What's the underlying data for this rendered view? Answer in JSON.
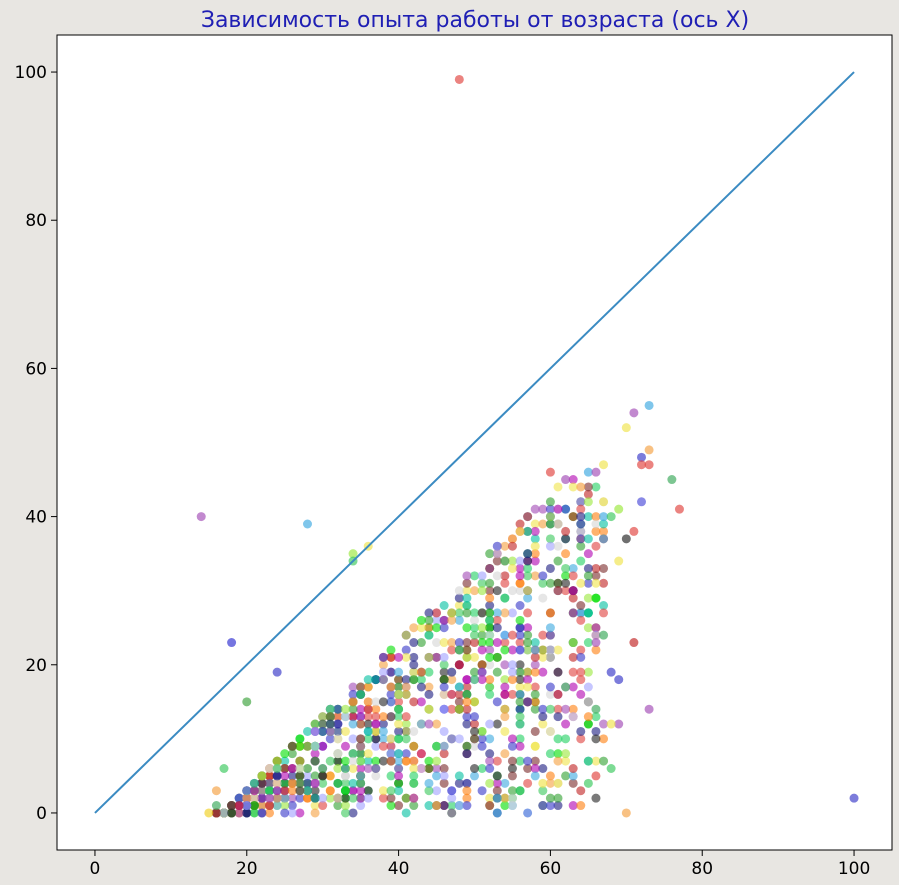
{
  "chart_data": {
    "type": "scatter",
    "title": "Зависимость опыта работы от возраста (ось X)",
    "xlabel": "",
    "ylabel": "",
    "xlim": [
      -5,
      105
    ],
    "ylim": [
      -5,
      105
    ],
    "x_ticks": [
      0,
      20,
      40,
      60,
      80,
      100
    ],
    "y_ticks": [
      0,
      20,
      40,
      60,
      80,
      100
    ],
    "grid": false,
    "reference_line": {
      "x": [
        0,
        100
      ],
      "y": [
        0,
        100
      ],
      "color": "#3b8bc2"
    },
    "outliers": [
      {
        "x": 48,
        "y": 99,
        "color": "#e0403c"
      },
      {
        "x": 14,
        "y": 40,
        "color": "#a24ab5"
      },
      {
        "x": 28,
        "y": 39,
        "color": "#3aa8e0"
      },
      {
        "x": 36,
        "y": 36,
        "color": "#f0e44a"
      },
      {
        "x": 34,
        "y": 35,
        "color": "#9ae83a"
      },
      {
        "x": 34,
        "y": 34,
        "color": "#38c85a"
      },
      {
        "x": 18,
        "y": 23,
        "color": "#2b2bd0"
      },
      {
        "x": 24,
        "y": 19,
        "color": "#3535c8"
      },
      {
        "x": 20,
        "y": 15,
        "color": "#3aa13a"
      },
      {
        "x": 100,
        "y": 2,
        "color": "#3535c8"
      },
      {
        "x": 73,
        "y": 55,
        "color": "#3aa8e0"
      },
      {
        "x": 71,
        "y": 54,
        "color": "#a24ab5"
      },
      {
        "x": 70,
        "y": 52,
        "color": "#f0e44a"
      },
      {
        "x": 73,
        "y": 49,
        "color": "#f5a040"
      },
      {
        "x": 72,
        "y": 48,
        "color": "#3535c8"
      },
      {
        "x": 72,
        "y": 47,
        "color": "#e0403c"
      },
      {
        "x": 73,
        "y": 47,
        "color": "#e0403c"
      },
      {
        "x": 76,
        "y": 45,
        "color": "#38a858"
      },
      {
        "x": 72,
        "y": 42,
        "color": "#4a4ad8"
      },
      {
        "x": 77,
        "y": 41,
        "color": "#e0403c"
      },
      {
        "x": 71,
        "y": 38,
        "color": "#e0403c"
      },
      {
        "x": 70,
        "y": 37,
        "color": "#222222"
      },
      {
        "x": 69,
        "y": 34,
        "color": "#f0e44a"
      },
      {
        "x": 71,
        "y": 23,
        "color": "#c02020"
      },
      {
        "x": 73,
        "y": 14,
        "color": "#a24ab5"
      },
      {
        "x": 70,
        "y": 0,
        "color": "#f5a040"
      },
      {
        "x": 68,
        "y": 6,
        "color": "#38c85a"
      },
      {
        "x": 66,
        "y": 5,
        "color": "#e0403c"
      },
      {
        "x": 65,
        "y": 4,
        "color": "#38c85a"
      },
      {
        "x": 61,
        "y": 4,
        "color": "#f0e44a"
      },
      {
        "x": 59,
        "y": 4,
        "color": "#f0e44a"
      },
      {
        "x": 59,
        "y": 1,
        "color": "#3a6ad8"
      },
      {
        "x": 57,
        "y": 0,
        "color": "#3a6ad8"
      },
      {
        "x": 69,
        "y": 12,
        "color": "#a24ab5"
      },
      {
        "x": 68,
        "y": 12,
        "color": "#f0e44a"
      },
      {
        "x": 69,
        "y": 18,
        "color": "#3535c8"
      },
      {
        "x": 66,
        "y": 14,
        "color": "#38a858"
      },
      {
        "x": 66,
        "y": 23,
        "color": "#a24ab5"
      },
      {
        "x": 67,
        "y": 24,
        "color": "#38a858"
      },
      {
        "x": 68,
        "y": 19,
        "color": "#3535c8"
      },
      {
        "x": 67,
        "y": 42,
        "color": "#f0e44a"
      },
      {
        "x": 65,
        "y": 46,
        "color": "#3aa8e0"
      },
      {
        "x": 67,
        "y": 47,
        "color": "#f0e44a"
      },
      {
        "x": 66,
        "y": 46,
        "color": "#a24ab5"
      },
      {
        "x": 60,
        "y": 46,
        "color": "#e0403c"
      },
      {
        "x": 62,
        "y": 45,
        "color": "#a24ab5"
      },
      {
        "x": 64,
        "y": 44,
        "color": "#f5a040"
      },
      {
        "x": 67,
        "y": 40,
        "color": "#3aa8e0"
      },
      {
        "x": 69,
        "y": 41,
        "color": "#9ae83a"
      },
      {
        "x": 68,
        "y": 40,
        "color": "#38c85a"
      },
      {
        "x": 15,
        "y": 0,
        "color": "#f0d020"
      },
      {
        "x": 17,
        "y": 6,
        "color": "#38c85a"
      },
      {
        "x": 16,
        "y": 3,
        "color": "#f5a040"
      },
      {
        "x": 16,
        "y": 1,
        "color": "#38a858"
      }
    ],
    "cluster_description": {
      "x_range": [
        16,
        67
      ],
      "y_range": [
        0,
        46
      ],
      "upper_bound_offset": 17,
      "point_count_estimate": 1200
    }
  }
}
